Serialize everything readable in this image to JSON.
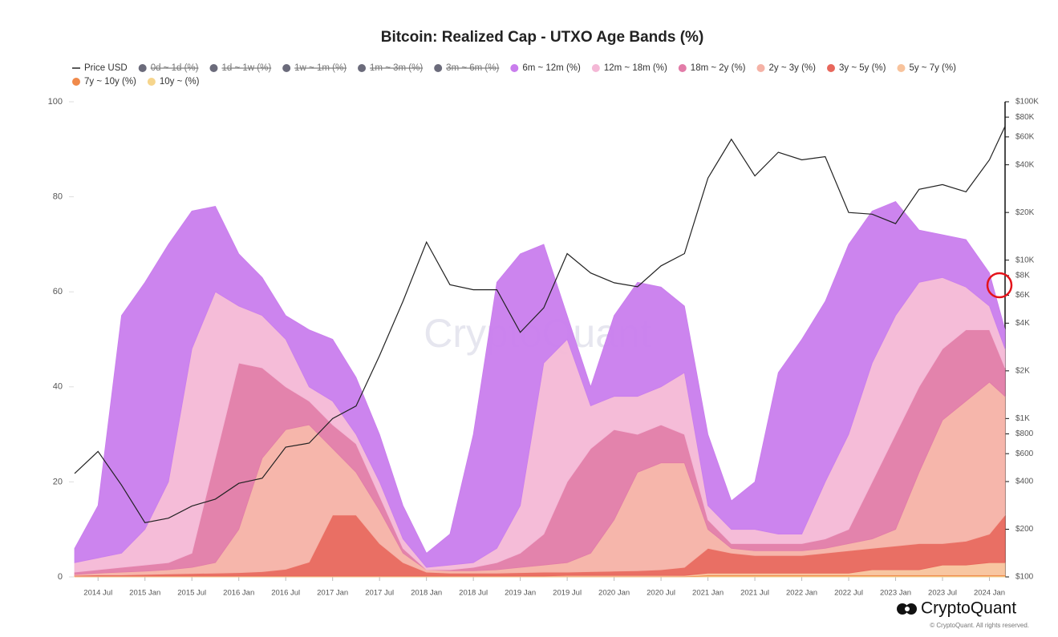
{
  "chart_data": {
    "type": "stacked-area",
    "title": "Bitcoin: Realized Cap - UTXO Age Bands (%)",
    "watermark": "CryptoQuant",
    "brand": "CryptoQuant",
    "copyright": "© CryptoQuant. All rights reserved.",
    "x": [
      "2014 Apr",
      "2014 Jul",
      "2014 Oct",
      "2015 Jan",
      "2015 Apr",
      "2015 Jul",
      "2015 Oct",
      "2016 Jan",
      "2016 Apr",
      "2016 Jul",
      "2016 Oct",
      "2017 Jan",
      "2017 Apr",
      "2017 Jul",
      "2017 Oct",
      "2018 Jan",
      "2018 Apr",
      "2018 Jul",
      "2018 Oct",
      "2019 Jan",
      "2019 Apr",
      "2019 Jul",
      "2019 Oct",
      "2020 Jan",
      "2020 Apr",
      "2020 Jul",
      "2020 Oct",
      "2021 Jan",
      "2021 Apr",
      "2021 Jul",
      "2021 Oct",
      "2022 Jan",
      "2022 Apr",
      "2022 Jul",
      "2022 Oct",
      "2023 Jan",
      "2023 Apr",
      "2023 Jul",
      "2023 Oct",
      "2024 Jan",
      "2024 Mar"
    ],
    "xlim": [
      "2014 Apr",
      "2024 Mar"
    ],
    "xticks": [
      "2014 Jul",
      "2015 Jan",
      "2015 Jul",
      "2016 Jan",
      "2016 Jul",
      "2017 Jan",
      "2017 Jul",
      "2018 Jan",
      "2018 Jul",
      "2019 Jan",
      "2019 Jul",
      "2020 Jan",
      "2020 Jul",
      "2021 Jan",
      "2021 Jul",
      "2022 Jan",
      "2022 Jul",
      "2023 Jan",
      "2023 Jul",
      "2024 Jan"
    ],
    "ylim": [
      0,
      100
    ],
    "yticks": [
      0,
      20,
      40,
      60,
      80,
      100
    ],
    "y2lim": [
      100,
      100000
    ],
    "y2log": true,
    "y2ticks": [
      {
        "value": 100,
        "label": "$100"
      },
      {
        "value": 200,
        "label": "$200"
      },
      {
        "value": 400,
        "label": "$400"
      },
      {
        "value": 600,
        "label": "$600"
      },
      {
        "value": 800,
        "label": "$800"
      },
      {
        "value": 1000,
        "label": "$1K"
      },
      {
        "value": 2000,
        "label": "$2K"
      },
      {
        "value": 4000,
        "label": "$4K"
      },
      {
        "value": 6000,
        "label": "$6K"
      },
      {
        "value": 8000,
        "label": "$8K"
      },
      {
        "value": 10000,
        "label": "$10K"
      },
      {
        "value": 20000,
        "label": "$20K"
      },
      {
        "value": 40000,
        "label": "$40K"
      },
      {
        "value": 60000,
        "label": "$60K"
      },
      {
        "value": 80000,
        "label": "$80K"
      },
      {
        "value": 100000,
        "label": "$100K"
      }
    ],
    "hidden_series": [
      {
        "name": "0d ~ 1d (%)",
        "color": "#6b6b7b"
      },
      {
        "name": "1d ~ 1w (%)",
        "color": "#6b6b7b"
      },
      {
        "name": "1w ~ 1m (%)",
        "color": "#6b6b7b"
      },
      {
        "name": "1m ~ 3m (%)",
        "color": "#6b6b7b"
      },
      {
        "name": "3m ~ 6m (%)",
        "color": "#6b6b7b"
      }
    ],
    "series": [
      {
        "name": "Price USD",
        "color": "#222222",
        "axis": "y2",
        "type": "line",
        "values": [
          450,
          620,
          380,
          220,
          235,
          280,
          310,
          390,
          420,
          660,
          700,
          1000,
          1200,
          2500,
          5500,
          13000,
          7000,
          6500,
          6500,
          3500,
          5000,
          11000,
          8300,
          7200,
          6800,
          9200,
          11000,
          33000,
          58000,
          34000,
          48000,
          43000,
          45000,
          20000,
          19500,
          17000,
          28000,
          30000,
          27000,
          43000,
          70000
        ]
      },
      {
        "name": "6m ~ 12m (%)",
        "color": "#c97ded",
        "values": [
          3,
          11,
          50,
          52,
          50,
          29,
          18,
          11,
          8,
          5,
          12,
          13,
          12,
          10,
          7,
          3,
          6.5,
          27,
          56,
          53,
          25,
          5,
          4,
          17,
          24,
          21,
          14,
          15,
          6,
          10,
          34,
          41,
          38,
          40,
          32,
          24,
          11,
          9,
          10,
          7,
          4
        ]
      },
      {
        "name": "12m ~ 18m (%)",
        "color": "#f4b8d6",
        "values": [
          2,
          2.5,
          3,
          7.5,
          17,
          43,
          35,
          12,
          11,
          10,
          3,
          5,
          2,
          3,
          2,
          0.5,
          1,
          1,
          3,
          10,
          36,
          30,
          9,
          7,
          8,
          8,
          13,
          3,
          3,
          3,
          2,
          2,
          12,
          20,
          25,
          25,
          22,
          15,
          9,
          5,
          4
        ]
      },
      {
        "name": "18m ~ 2y (%)",
        "color": "#e27ca8",
        "values": [
          0.5,
          0.7,
          1,
          1.3,
          1.5,
          3,
          22,
          35,
          19,
          9,
          5,
          5,
          6,
          3,
          1,
          0,
          0.2,
          0.7,
          1.5,
          3,
          6.5,
          17,
          22,
          19,
          8,
          8,
          6,
          2,
          1,
          1.5,
          1.5,
          1.5,
          2,
          3,
          12,
          20,
          18,
          15,
          15,
          11,
          6
        ]
      },
      {
        "name": "2y ~ 3y (%)",
        "color": "#f5b2a6",
        "values": [
          0.2,
          0.4,
          0.6,
          0.7,
          0.9,
          1.3,
          2.2,
          9.1,
          23.9,
          29.4,
          28.9,
          14,
          9,
          7,
          2,
          0.5,
          0.5,
          0.5,
          0.7,
          1.1,
          1.5,
          2,
          3.9,
          10.8,
          20.7,
          22.5,
          22,
          4,
          1,
          1,
          1,
          1,
          1,
          1.5,
          2,
          3.5,
          15,
          26,
          29.5,
          32,
          25
        ]
      },
      {
        "name": "3y ~ 5y (%)",
        "color": "#e8675c",
        "values": [
          0.1,
          0.2,
          0.2,
          0.3,
          0.4,
          0.5,
          0.6,
          0.7,
          0.9,
          1.4,
          2.9,
          12.8,
          12.8,
          6.8,
          2.8,
          0.8,
          0.6,
          0.6,
          0.6,
          0.7,
          0.8,
          0.7,
          0.8,
          0.9,
          1,
          1.2,
          1.7,
          5.2,
          4.2,
          3.7,
          3.7,
          3.7,
          4.2,
          4.7,
          4.5,
          5,
          5.5,
          4.5,
          5,
          6,
          10
        ]
      },
      {
        "name": "5y ~ 7y (%)",
        "color": "#f8c39c",
        "values": [
          0.1,
          0.1,
          0.1,
          0.1,
          0.1,
          0.1,
          0.1,
          0.1,
          0.1,
          0.1,
          0.1,
          0.1,
          0.1,
          0.1,
          0.1,
          0.1,
          0.1,
          0.1,
          0.1,
          0.1,
          0.1,
          0.2,
          0.2,
          0.2,
          0.2,
          0.2,
          0.2,
          0.4,
          0.4,
          0.4,
          0.4,
          0.4,
          0.4,
          0.4,
          1.1,
          1.1,
          1.1,
          2.1,
          2.1,
          2.6,
          2.6
        ]
      },
      {
        "name": "7y ~ 10y (%)",
        "color": "#f08a4b",
        "values": [
          0.05,
          0.05,
          0.05,
          0.05,
          0.05,
          0.05,
          0.05,
          0.05,
          0.05,
          0.05,
          0.05,
          0.05,
          0.05,
          0.05,
          0.05,
          0.05,
          0.05,
          0.05,
          0.05,
          0.05,
          0.05,
          0.05,
          0.05,
          0.05,
          0.05,
          0.05,
          0.05,
          0.2,
          0.2,
          0.2,
          0.2,
          0.2,
          0.2,
          0.2,
          0.2,
          0.2,
          0.2,
          0.2,
          0.2,
          0.2,
          0.2
        ]
      },
      {
        "name": "10y ~ (%)",
        "color": "#f6d58c",
        "values": [
          0.05,
          0.05,
          0.05,
          0.05,
          0.05,
          0.05,
          0.05,
          0.05,
          0.05,
          0.05,
          0.05,
          0.05,
          0.05,
          0.05,
          0.05,
          0.05,
          0.05,
          0.05,
          0.05,
          0.05,
          0.05,
          0.05,
          0.05,
          0.05,
          0.05,
          0.05,
          0.05,
          0.2,
          0.2,
          0.2,
          0.2,
          0.2,
          0.2,
          0.2,
          0.2,
          0.2,
          0.2,
          0.2,
          0.2,
          0.2,
          0.2
        ]
      }
    ]
  }
}
